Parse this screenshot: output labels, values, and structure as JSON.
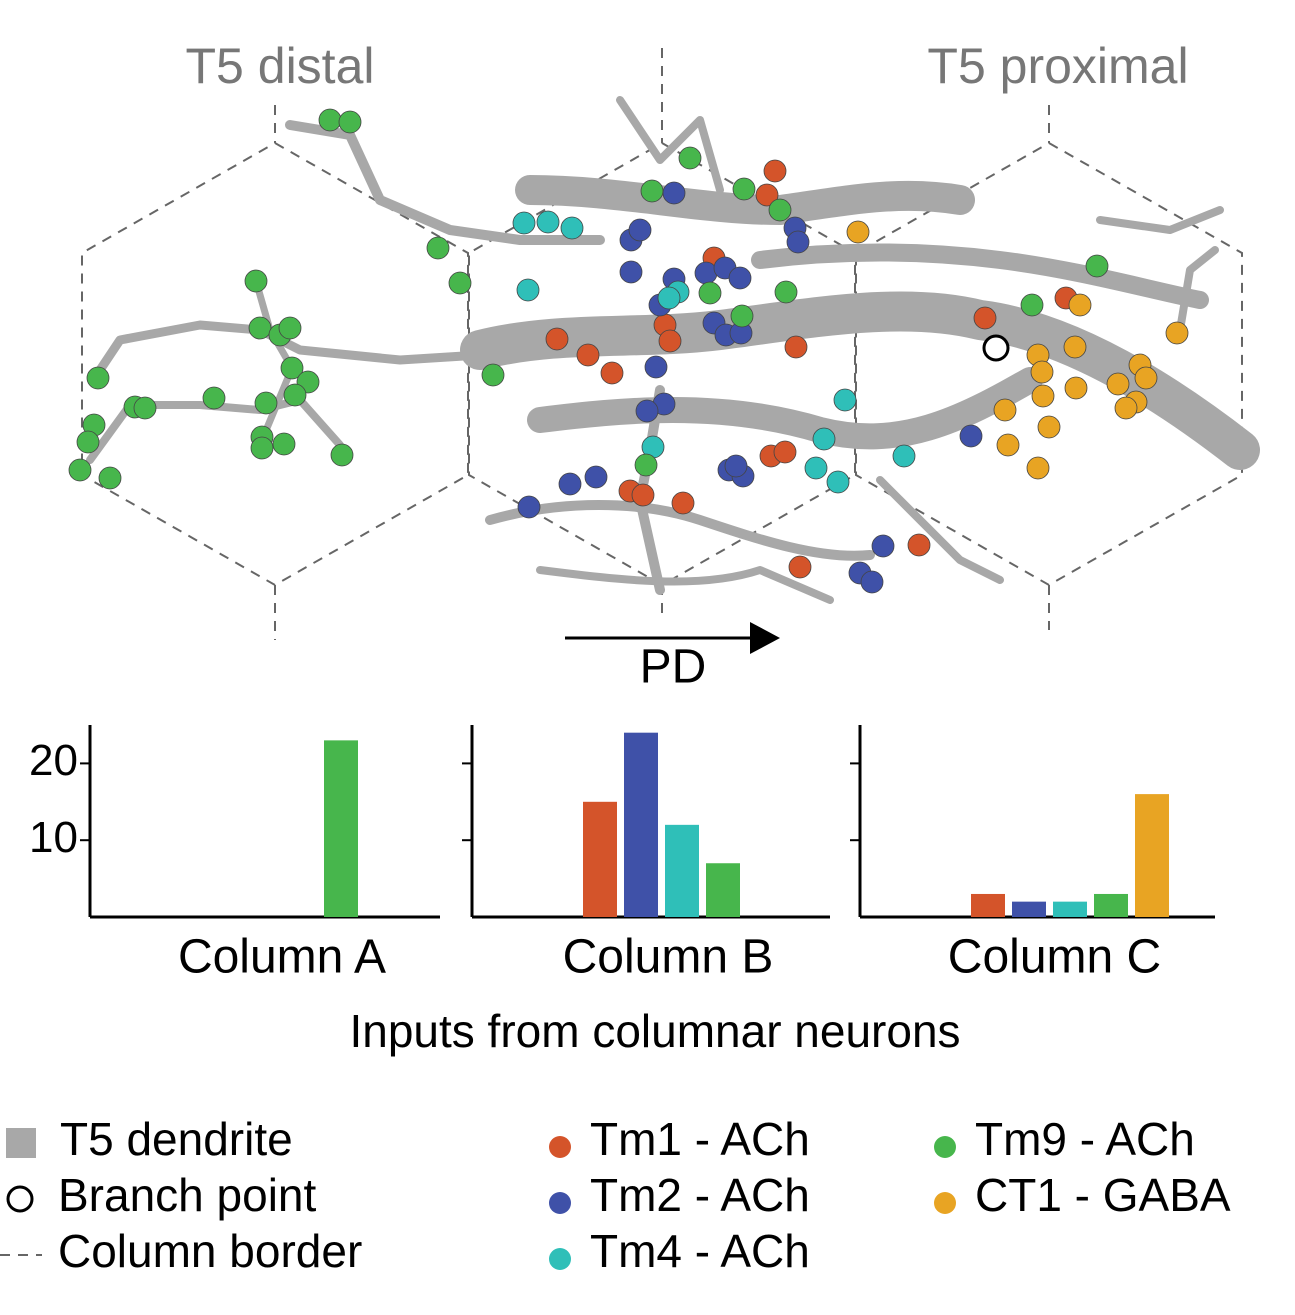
{
  "figure": {
    "labels": [
      "T5 distal",
      "T5 proximal"
    ],
    "arrow_label": "PD"
  },
  "shared_xlabel": "Inputs from columnar neurons",
  "legend_extra": [
    "T5 dendrite",
    "Branch point",
    "Column border"
  ],
  "chart_data": [
    {
      "type": "bar",
      "xlabel": "Column A",
      "ylim": [
        0,
        25
      ],
      "yticks": [
        10,
        20
      ],
      "series": [
        {
          "name": "Tm1 - ACh",
          "color": "#d4542a",
          "values": [
            0
          ]
        },
        {
          "name": "Tm2 - ACh",
          "color": "#3f51a8",
          "values": [
            0
          ]
        },
        {
          "name": "Tm4 - ACh",
          "color": "#2fbfb8",
          "values": [
            0
          ]
        },
        {
          "name": "Tm9 - ACh",
          "color": "#47b64c",
          "values": [
            23
          ]
        },
        {
          "name": "CT1 - GABA",
          "color": "#e8a423",
          "values": [
            0
          ]
        }
      ]
    },
    {
      "type": "bar",
      "xlabel": "Column B",
      "ylim": [
        0,
        25
      ],
      "yticks": [
        10,
        20
      ],
      "series": [
        {
          "name": "Tm1 - ACh",
          "color": "#d4542a",
          "values": [
            15
          ]
        },
        {
          "name": "Tm2 - ACh",
          "color": "#3f51a8",
          "values": [
            24
          ]
        },
        {
          "name": "Tm4 - ACh",
          "color": "#2fbfb8",
          "values": [
            12
          ]
        },
        {
          "name": "Tm9 - ACh",
          "color": "#47b64c",
          "values": [
            7
          ]
        },
        {
          "name": "CT1 - GABA",
          "color": "#e8a423",
          "values": [
            0
          ]
        }
      ]
    },
    {
      "type": "bar",
      "xlabel": "Column C",
      "ylim": [
        0,
        25
      ],
      "yticks": [
        10,
        20
      ],
      "series": [
        {
          "name": "Tm1 - ACh",
          "color": "#d4542a",
          "values": [
            3
          ]
        },
        {
          "name": "Tm2 - ACh",
          "color": "#3f51a8",
          "values": [
            2
          ]
        },
        {
          "name": "Tm4 - ACh",
          "color": "#2fbfb8",
          "values": [
            2
          ]
        },
        {
          "name": "Tm9 - ACh",
          "color": "#47b64c",
          "values": [
            3
          ]
        },
        {
          "name": "CT1 - GABA",
          "color": "#e8a423",
          "values": [
            16
          ]
        }
      ]
    }
  ]
}
